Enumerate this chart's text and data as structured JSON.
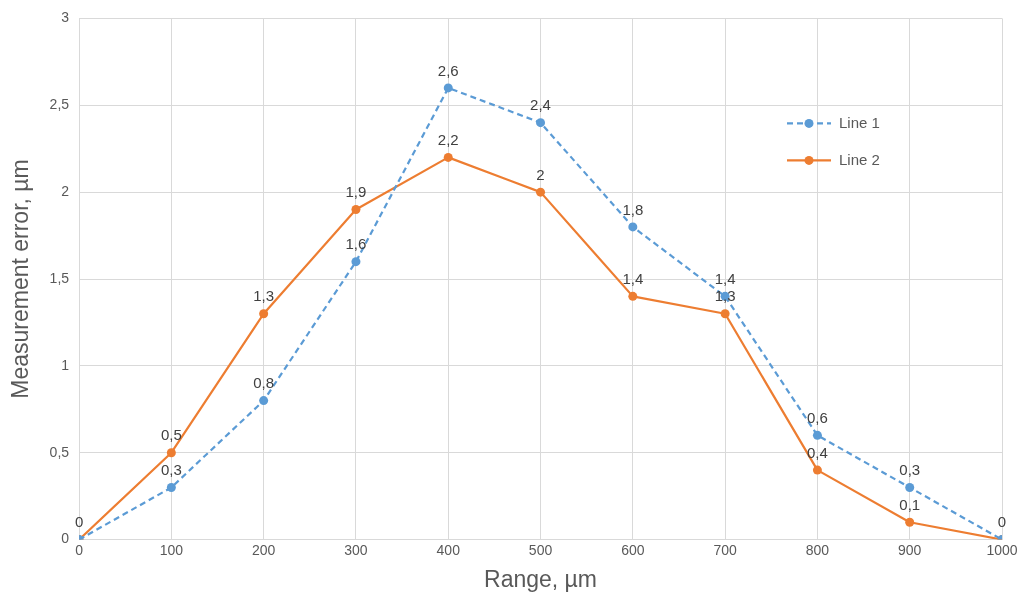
{
  "chart_data": {
    "type": "line",
    "xlabel": "Range, µm",
    "ylabel": "Measurement error, µm",
    "x": [
      0,
      100,
      200,
      300,
      400,
      500,
      600,
      700,
      800,
      900,
      1000
    ],
    "xlim": [
      0,
      1000
    ],
    "xticks": [
      0,
      100,
      200,
      300,
      400,
      500,
      600,
      700,
      800,
      900,
      1000
    ],
    "ylim": [
      0,
      3
    ],
    "yticks": [
      0,
      {
        "value": 0.5,
        "label": "0,5"
      },
      1,
      {
        "value": 1.5,
        "label": "1,5"
      },
      2,
      {
        "value": 2.5,
        "label": "2,5"
      },
      3
    ],
    "grid": true,
    "legend": "top right",
    "marker": "circle",
    "series": [
      {
        "name": "Line 1",
        "color": "#5b9bd5",
        "line_style": "dashed",
        "values": [
          0,
          0.3,
          0.8,
          1.6,
          2.6,
          2.4,
          1.8,
          1.4,
          0.6,
          0.3,
          0
        ],
        "value_labels": [
          "0",
          "0,3",
          "0,8",
          "1,6",
          "2,6",
          "2,4",
          "1,8",
          "1,4",
          "0,6",
          "0,3",
          "0"
        ]
      },
      {
        "name": "Line 2",
        "color": "#ed7d31",
        "line_style": "solid",
        "values": [
          0,
          0.5,
          1.3,
          1.9,
          2.2,
          2.0,
          1.4,
          1.3,
          0.4,
          0.1,
          0
        ],
        "value_labels": [
          null,
          "0,5",
          "1,3",
          "1,9",
          "2,2",
          "2",
          "1,4",
          "1,3",
          "0,4",
          "0,1",
          null
        ]
      }
    ]
  }
}
